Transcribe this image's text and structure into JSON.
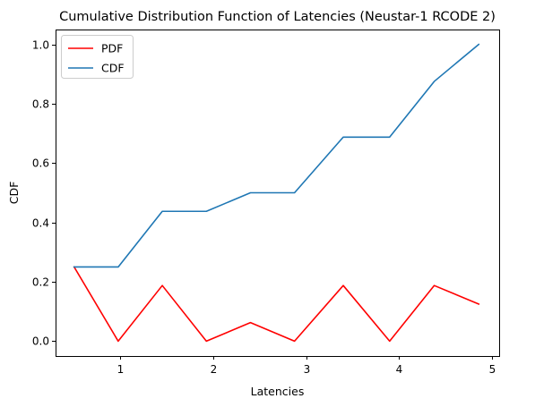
{
  "chart_data": {
    "type": "line",
    "title": "Cumulative Distribution Function of Latencies (Neustar-1 RCODE 2)",
    "xlabel": "Latencies",
    "ylabel": "CDF",
    "xlim": [
      0.3,
      5.08
    ],
    "ylim": [
      -0.05,
      1.05
    ],
    "xticks": [
      1,
      2,
      3,
      4,
      5
    ],
    "yticks": [
      0.0,
      0.2,
      0.4,
      0.6,
      0.8,
      1.0
    ],
    "xtick_labels": [
      "1",
      "2",
      "3",
      "4",
      "5"
    ],
    "ytick_labels": [
      "0.0",
      "0.2",
      "0.4",
      "0.6",
      "0.8",
      "1.0"
    ],
    "grid": false,
    "legend_position": "top-left",
    "x": [
      0.5,
      0.975,
      1.45,
      1.925,
      2.4,
      2.875,
      3.4,
      3.9,
      4.38,
      4.86
    ],
    "series": [
      {
        "name": "PDF",
        "color": "#ff0000",
        "values": [
          0.25,
          0.0,
          0.1875,
          0.0,
          0.0625,
          0.0,
          0.1875,
          0.0,
          0.1875,
          0.125
        ]
      },
      {
        "name": "CDF",
        "color": "#1f77b4",
        "values": [
          0.25,
          0.25,
          0.4375,
          0.4375,
          0.5,
          0.5,
          0.6875,
          0.6875,
          0.875,
          1.0
        ]
      }
    ]
  }
}
